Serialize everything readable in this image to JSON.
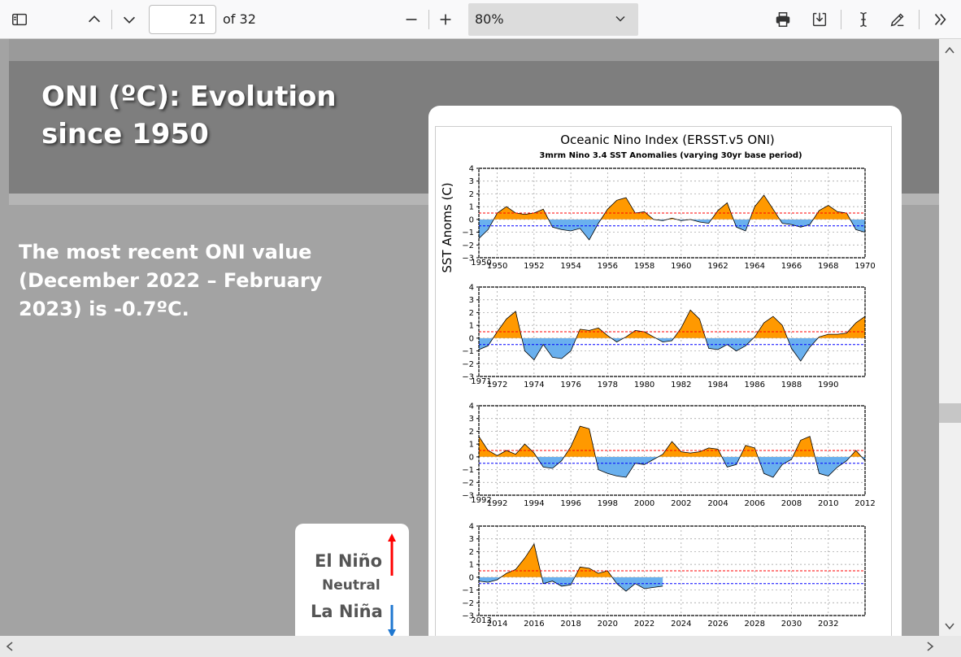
{
  "toolbar": {
    "page_current": "21",
    "page_total": "of 32",
    "zoom": "80%",
    "icons": [
      "sidebar-icon",
      "chevron-up-icon",
      "chevron-down-icon",
      "minus-icon",
      "plus-icon",
      "print-icon",
      "download-icon",
      "text-cursor-icon",
      "pen-icon",
      "double-chevron-right-icon"
    ]
  },
  "slide": {
    "title": "ONI (ºC): Evolution since 1950",
    "title_line1": "ONI (ºC): Evolution",
    "title_line2": "since 1950",
    "body_line1": "The most recent ONI value",
    "body_line2": "(December 2022 – February",
    "body_line3": "2023) is -0.7ºC."
  },
  "legend": {
    "el_nino": "El Niño",
    "neutral": "Neutral",
    "la_nina": "La Niña",
    "colors": {
      "el_nino": "#ff0000",
      "la_nina": "#1f77d0"
    }
  },
  "chart_data": {
    "type": "area",
    "title": "Oceanic Nino Index (ERSST.v5 ONI)",
    "subtitle": "3mrm Nino 3.4 SST Anomalies (varying 30yr base period)",
    "ylabel": "SST Anoms (C)",
    "ylim": [
      -3,
      4
    ],
    "yticks": [
      "4",
      "3",
      "2",
      "1",
      "0",
      "−1",
      "−2",
      "−3"
    ],
    "thresholds": [
      0.5,
      -0.5
    ],
    "colors": {
      "positive": "#ff9900",
      "negative": "#6ab0ee",
      "upper_line": "#ff0000",
      "lower_line": "#0000ff"
    },
    "panels": [
      {
        "xticks": [
          "1950",
          "1952",
          "1954",
          "1956",
          "1958",
          "1960",
          "1962",
          "1964",
          "1966",
          "1968",
          "1970"
        ],
        "x": [
          1950,
          1950.5,
          1951,
          1951.5,
          1952,
          1952.5,
          1953,
          1953.5,
          1954,
          1954.5,
          1955,
          1955.5,
          1956,
          1956.5,
          1957,
          1957.5,
          1958,
          1958.5,
          1959,
          1959.5,
          1960,
          1960.5,
          1961,
          1961.5,
          1962,
          1962.5,
          1963,
          1963.5,
          1964,
          1964.5,
          1965,
          1965.5,
          1966,
          1966.5,
          1967,
          1967.5,
          1968,
          1968.5,
          1969,
          1969.5,
          1970,
          1970.5,
          1971
        ],
        "y": [
          -1.5,
          -0.8,
          0.5,
          1.0,
          0.5,
          0.4,
          0.5,
          0.8,
          -0.6,
          -0.8,
          -0.9,
          -0.7,
          -1.6,
          -0.3,
          0.8,
          1.5,
          1.7,
          0.5,
          0.6,
          0.0,
          -0.1,
          0.1,
          -0.1,
          0.0,
          -0.2,
          -0.3,
          0.7,
          1.3,
          -0.6,
          -0.9,
          1.0,
          1.9,
          0.8,
          -0.3,
          -0.4,
          -0.6,
          -0.4,
          0.7,
          1.1,
          0.6,
          0.5,
          -0.8,
          -1.0
        ]
      },
      {
        "xticks": [
          "1972",
          "1974",
          "1976",
          "1978",
          "1980",
          "1982",
          "1984",
          "1986",
          "1988",
          "1990"
        ],
        "x": [
          1971,
          1971.5,
          1972,
          1972.5,
          1973,
          1973.5,
          1974,
          1974.5,
          1975,
          1975.5,
          1976,
          1976.5,
          1977,
          1977.5,
          1978,
          1978.5,
          1979,
          1979.5,
          1980,
          1980.5,
          1981,
          1981.5,
          1982,
          1982.5,
          1983,
          1983.5,
          1984,
          1984.5,
          1985,
          1985.5,
          1986,
          1986.5,
          1987,
          1987.5,
          1988,
          1988.5,
          1989,
          1989.5,
          1990,
          1990.5,
          1991,
          1991.5,
          1992
        ],
        "y": [
          -0.9,
          -0.6,
          0.5,
          1.5,
          2.1,
          -1.0,
          -1.7,
          -0.5,
          -1.5,
          -1.6,
          -1.0,
          0.7,
          0.6,
          0.8,
          0.2,
          -0.3,
          0.1,
          0.6,
          0.5,
          0.1,
          -0.3,
          -0.2,
          0.8,
          2.2,
          1.5,
          -0.8,
          -0.9,
          -0.5,
          -1.0,
          -0.6,
          0.1,
          1.2,
          1.7,
          1.0,
          -0.8,
          -1.8,
          -0.7,
          0.1,
          0.3,
          0.3,
          0.4,
          1.2,
          1.7
        ]
      },
      {
        "xticks": [
          "1992",
          "1994",
          "1996",
          "1998",
          "2000",
          "2002",
          "2004",
          "2006",
          "2008",
          "2010",
          "2012"
        ],
        "x": [
          1992,
          1992.5,
          1993,
          1993.5,
          1994,
          1994.5,
          1995,
          1995.5,
          1996,
          1996.5,
          1997,
          1997.5,
          1998,
          1998.5,
          1999,
          1999.5,
          2000,
          2000.5,
          2001,
          2001.5,
          2002,
          2002.5,
          2003,
          2003.5,
          2004,
          2004.5,
          2005,
          2005.5,
          2006,
          2006.5,
          2007,
          2007.5,
          2008,
          2008.5,
          2009,
          2009.5,
          2010,
          2010.5,
          2011,
          2011.5,
          2012,
          2012.5,
          2013
        ],
        "y": [
          1.6,
          0.5,
          0.1,
          0.5,
          0.2,
          1.0,
          0.3,
          -0.8,
          -0.9,
          -0.3,
          0.8,
          2.4,
          2.2,
          -1.0,
          -1.3,
          -1.5,
          -1.6,
          -0.5,
          -0.6,
          -0.2,
          0.2,
          1.2,
          0.4,
          0.3,
          0.4,
          0.7,
          0.6,
          -0.8,
          -0.6,
          0.9,
          0.7,
          -1.3,
          -1.6,
          -0.6,
          -0.2,
          1.3,
          1.6,
          -1.3,
          -1.5,
          -0.8,
          -0.3,
          0.5,
          -0.3
        ]
      },
      {
        "xticks": [
          "2014",
          "2016",
          "2018",
          "2020",
          "2022",
          "2024",
          "2026",
          "2028",
          "2030",
          "2032"
        ],
        "x": [
          2013,
          2013.5,
          2014,
          2014.5,
          2015,
          2015.5,
          2016,
          2016.5,
          2017,
          2017.5,
          2018,
          2018.5,
          2019,
          2019.5,
          2020,
          2020.5,
          2021,
          2021.5,
          2022,
          2022.5,
          2023
        ],
        "y": [
          -0.3,
          -0.4,
          -0.2,
          0.3,
          0.6,
          1.5,
          2.6,
          -0.5,
          -0.3,
          -0.7,
          -0.6,
          0.8,
          0.7,
          0.3,
          0.5,
          -0.5,
          -1.1,
          -0.5,
          -0.9,
          -0.8,
          -0.7
        ]
      }
    ]
  }
}
